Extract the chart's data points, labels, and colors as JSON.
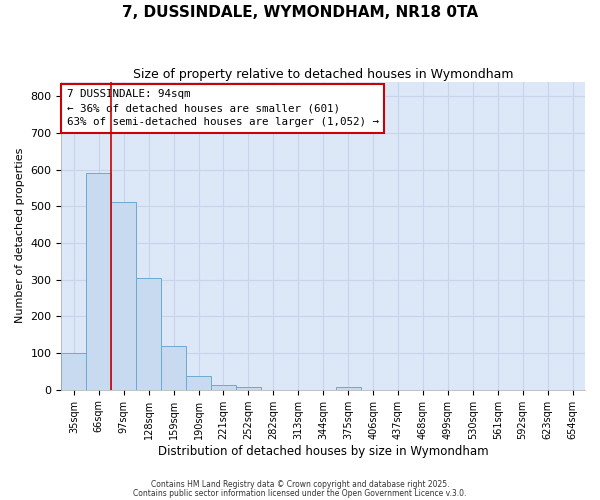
{
  "title": "7, DUSSINDALE, WYMONDHAM, NR18 0TA",
  "subtitle": "Size of property relative to detached houses in Wymondham",
  "xlabel": "Distribution of detached houses by size in Wymondham",
  "ylabel": "Number of detached properties",
  "bar_color": "#c8daf0",
  "bar_edge_color": "#6aaad4",
  "categories": [
    "35sqm",
    "66sqm",
    "97sqm",
    "128sqm",
    "159sqm",
    "190sqm",
    "221sqm",
    "252sqm",
    "282sqm",
    "313sqm",
    "344sqm",
    "375sqm",
    "406sqm",
    "437sqm",
    "468sqm",
    "499sqm",
    "530sqm",
    "561sqm",
    "592sqm",
    "623sqm",
    "654sqm"
  ],
  "values": [
    101,
    591,
    511,
    305,
    120,
    37,
    13,
    8,
    0,
    0,
    0,
    8,
    0,
    0,
    0,
    0,
    0,
    0,
    0,
    0,
    0
  ],
  "red_line_x": 1.5,
  "red_line_color": "#cc0000",
  "annotation_text": "7 DUSSINDALE: 94sqm\n← 36% of detached houses are smaller (601)\n63% of semi-detached houses are larger (1,052) →",
  "annotation_box_color": "#ffffff",
  "annotation_box_edge_color": "#cc0000",
  "ylim": [
    0,
    840
  ],
  "yticks": [
    0,
    100,
    200,
    300,
    400,
    500,
    600,
    700,
    800
  ],
  "grid_color": "#c8d4e8",
  "plot_bg_color": "#dce8f8",
  "fig_bg_color": "#ffffff",
  "footer1": "Contains HM Land Registry data © Crown copyright and database right 2025.",
  "footer2": "Contains public sector information licensed under the Open Government Licence v.3.0."
}
